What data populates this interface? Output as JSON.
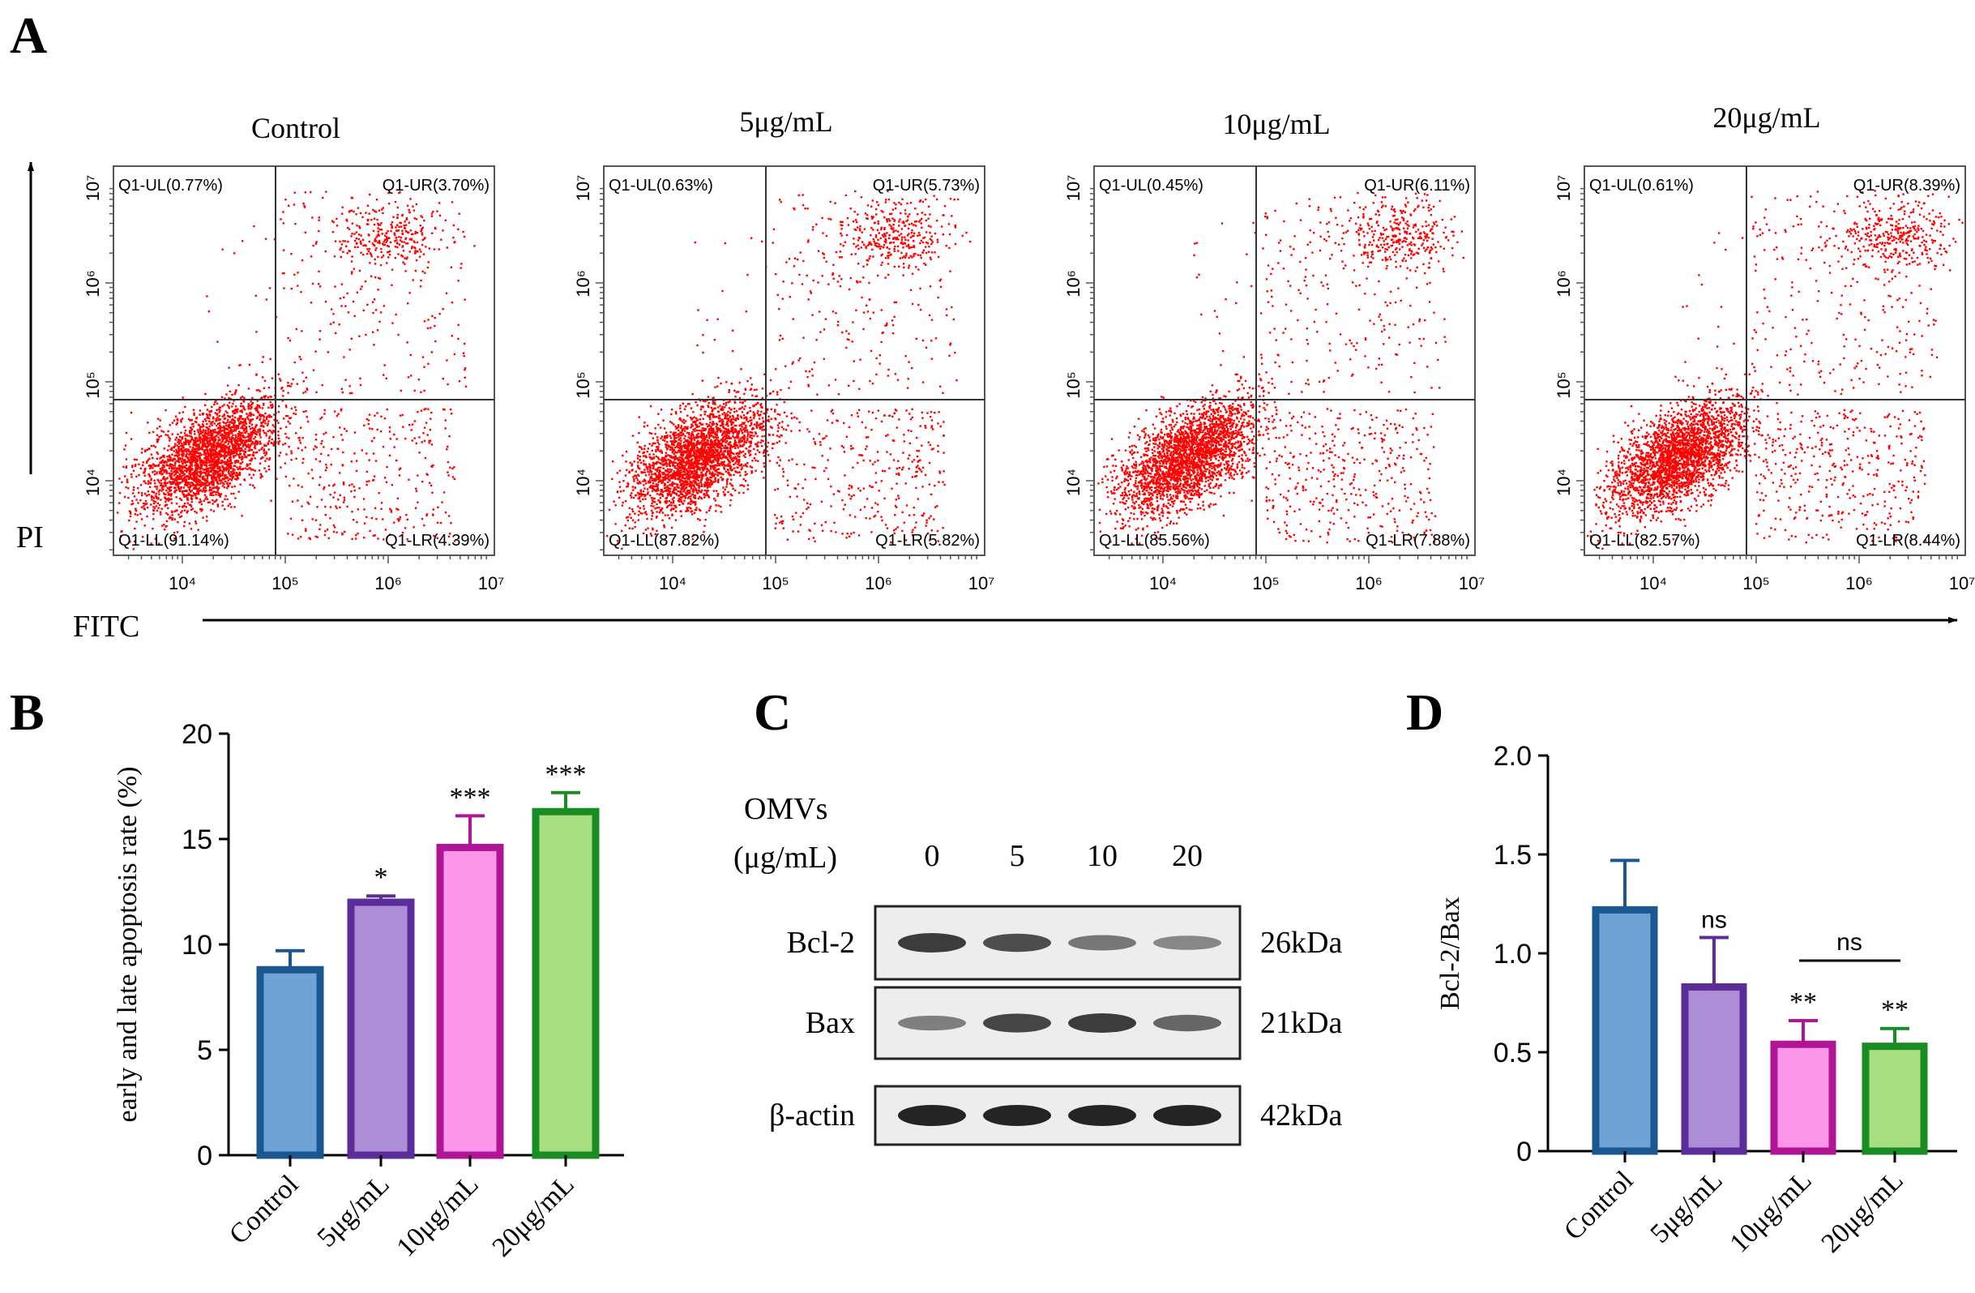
{
  "panel_a": {
    "label": "A",
    "y_axis_label": "PI",
    "x_axis_label": "FITC",
    "tick_labels": [
      "10⁴",
      "10⁵",
      "10⁶",
      "10⁷"
    ],
    "plots": [
      {
        "title": "Control",
        "ul": "Q1-UL(0.77%)",
        "ur": "Q1-UR(3.70%)",
        "ll": "Q1-LL(91.14%)",
        "lr": "Q1-LR(4.39%)",
        "early_frac": 0.04,
        "late_frac": 0.04
      },
      {
        "title": "5μg/mL",
        "ul": "Q1-UL(0.63%)",
        "ur": "Q1-UR(5.73%)",
        "ll": "Q1-LL(87.82%)",
        "lr": "Q1-LR(5.82%)",
        "early_frac": 0.06,
        "late_frac": 0.06
      },
      {
        "title": "10μg/mL",
        "ul": "Q1-UL(0.45%)",
        "ur": "Q1-UR(6.11%)",
        "ll": "Q1-LL(85.56%)",
        "lr": "Q1-LR(7.88%)",
        "early_frac": 0.08,
        "late_frac": 0.06
      },
      {
        "title": "20μg/mL",
        "ul": "Q1-UL(0.61%)",
        "ur": "Q1-UR(8.39%)",
        "ll": "Q1-LL(82.57%)",
        "lr": "Q1-LR(8.44%)",
        "early_frac": 0.085,
        "late_frac": 0.085
      }
    ]
  },
  "panel_b": {
    "label": "B",
    "chart_data": {
      "type": "bar",
      "categories": [
        "Control",
        "5μg/mL",
        "10μg/mL",
        "20μg/mL"
      ],
      "values": [
        8.8,
        12.0,
        14.6,
        16.3
      ],
      "errors": [
        0.9,
        0.3,
        1.5,
        0.9
      ],
      "significance": [
        "",
        "*",
        "***",
        "***"
      ],
      "ylabel": "early and late apoptosis rate (%)",
      "ylim": [
        0,
        20
      ],
      "yticks": [
        0,
        5,
        10,
        15,
        20
      ],
      "fill_colors": [
        "#6fa3d6",
        "#ac8dd6",
        "#fc96e9",
        "#a8de82"
      ],
      "edge_colors": [
        "#1a5690",
        "#5b2d9a",
        "#b01595",
        "#1a8c24"
      ]
    }
  },
  "panel_c": {
    "label": "C",
    "header_line1": "OMVs",
    "header_line2": "(μg/mL)",
    "lanes": [
      "0",
      "5",
      "10",
      "20"
    ],
    "rows": [
      {
        "protein": "Bcl-2",
        "size": "26kDa",
        "intensity": [
          0.85,
          0.75,
          0.5,
          0.4
        ]
      },
      {
        "protein": "Bax",
        "size": "21kDa",
        "intensity": [
          0.45,
          0.8,
          0.85,
          0.6
        ]
      },
      {
        "protein": "β-actin",
        "size": "42kDa",
        "intensity": [
          1.0,
          1.0,
          1.0,
          1.0
        ]
      }
    ]
  },
  "panel_d": {
    "label": "D",
    "chart_data": {
      "type": "bar",
      "categories": [
        "Control",
        "5μg/mL",
        "10μg/mL",
        "20μg/mL"
      ],
      "values": [
        1.22,
        0.83,
        0.54,
        0.53
      ],
      "errors": [
        0.25,
        0.25,
        0.12,
        0.09
      ],
      "significance": [
        "",
        "ns",
        "**",
        "**"
      ],
      "bracket_label": "ns",
      "ylabel": "Bcl-2/Bax",
      "ylim": [
        0,
        2.0
      ],
      "yticks": [
        "0",
        "0.5",
        "1.0",
        "1.5",
        "2.0"
      ],
      "fill_colors": [
        "#6fa3d6",
        "#ac8dd6",
        "#fc96e9",
        "#a8de82"
      ],
      "edge_colors": [
        "#1a5690",
        "#5b2d9a",
        "#b01595",
        "#1a8c24"
      ]
    }
  }
}
